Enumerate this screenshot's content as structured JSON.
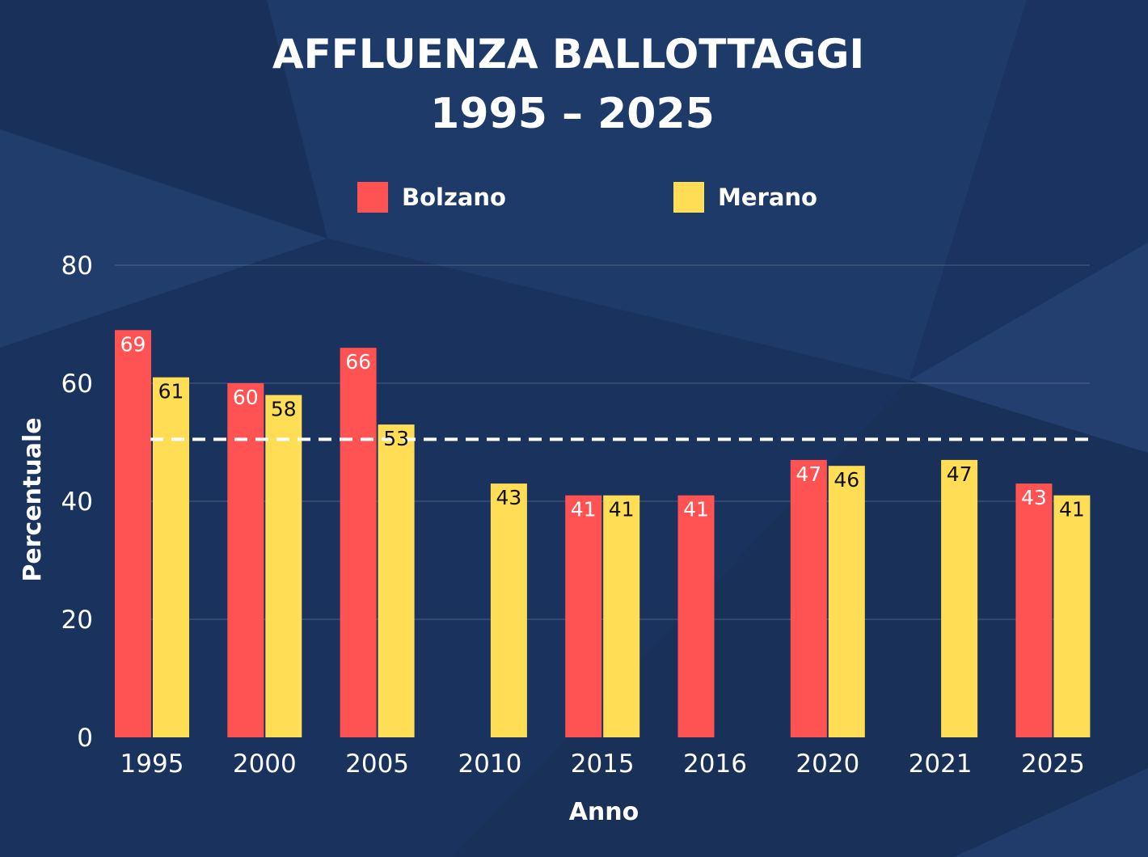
{
  "chart_data": {
    "type": "bar",
    "title_line1": "AFFLUENZA BALLOTTAGGI",
    "title_line2": "1995 – 2025",
    "xlabel": "Anno",
    "ylabel": "Percentuale",
    "ylim": [
      0,
      80
    ],
    "yticks": [
      0,
      20,
      40,
      60,
      80
    ],
    "grid": true,
    "legend_position": "top-center",
    "reference_line": {
      "value": 50.5,
      "style": "dashed",
      "color": "#ffffff"
    },
    "categories": [
      "1995",
      "2000",
      "2005",
      "2010",
      "2015",
      "2016",
      "2020",
      "2021",
      "2025"
    ],
    "series": [
      {
        "name": "Bolzano",
        "color": "#ff5252",
        "label_color": "#ffffff",
        "values": [
          69,
          60,
          66,
          null,
          41,
          41,
          47,
          null,
          43
        ],
        "labels": [
          "69",
          "60",
          "66",
          "",
          "41",
          "41",
          "47",
          "",
          "43"
        ]
      },
      {
        "name": "Merano",
        "color": "#ffdd55",
        "label_color": "#111111",
        "values": [
          61,
          58,
          53,
          43,
          41,
          null,
          46,
          47,
          41
        ],
        "labels": [
          "61",
          "58",
          "53",
          "43",
          "41",
          "",
          "46",
          "47",
          "41"
        ]
      }
    ]
  }
}
